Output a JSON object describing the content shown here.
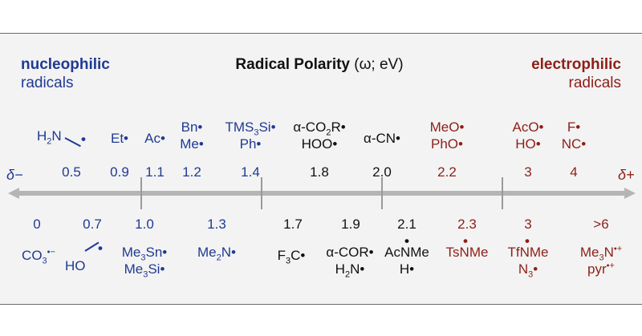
{
  "header": {
    "left_title": "nucleophilic",
    "left_sub": "radicals",
    "center_title": "Radical Polarity",
    "center_unit": "(ω; eV)",
    "right_title": "electrophilic",
    "right_sub": "radicals"
  },
  "axis": {
    "delta_minus": "δ−",
    "delta_plus": "δ+",
    "colors": {
      "nucleophilic": "#1f3a93",
      "neutral": "#111111",
      "electrophilic": "#8e1f17",
      "axis": "#b5b5b5"
    }
  },
  "top": {
    "h2n_label": "H2N",
    "h2n_value": "0.5",
    "et_label": "Et",
    "et_value": "0.9",
    "ac_label": "Ac",
    "ac_value": "1.1",
    "bn_me_label1": "Bn",
    "bn_me_label2": "Me",
    "bn_me_value": "1.2",
    "tms_label1": "TMS3Si",
    "tms_label2": "Ph",
    "tms_value": "1.4",
    "co2r_label1": "α-CO2R",
    "co2r_label2": "HOO",
    "co2r_value": "1.8",
    "cn_label": "α-CN",
    "cn_value": "2.0",
    "meo_label1": "MeO",
    "meo_label2": "PhO",
    "meo_value": "2.2",
    "aco_label1": "AcO",
    "aco_label2": "HO",
    "aco_value": "3",
    "f_label1": "F",
    "f_label2": "NC",
    "f_value": "4"
  },
  "bottom": {
    "co3_value": "0",
    "co3_label": "CO3",
    "ho_value": "0.7",
    "ho_label": "HO",
    "sn_value": "1.0",
    "sn_label1": "Me3Sn",
    "sn_label2": "Me3Si",
    "me2n_value": "1.3",
    "me2n_label": "Me2N",
    "f3c_value": "1.7",
    "f3c_label": "F3C",
    "cor_value": "1.9",
    "cor_label1": "α-COR",
    "cor_label2": "H2N",
    "acnme_value": "2.1",
    "acnme_label1": "AcNMe",
    "acnme_label2": "H",
    "tsnme_value": "2.3",
    "tsnme_label": "TsNMe",
    "tfnme_value": "3",
    "tfnme_label1": "TfNMe",
    "tfnme_label2": "N3",
    "me3n_value": ">6",
    "me3n_label1": "Me3N",
    "me3n_label2": "pyr"
  }
}
